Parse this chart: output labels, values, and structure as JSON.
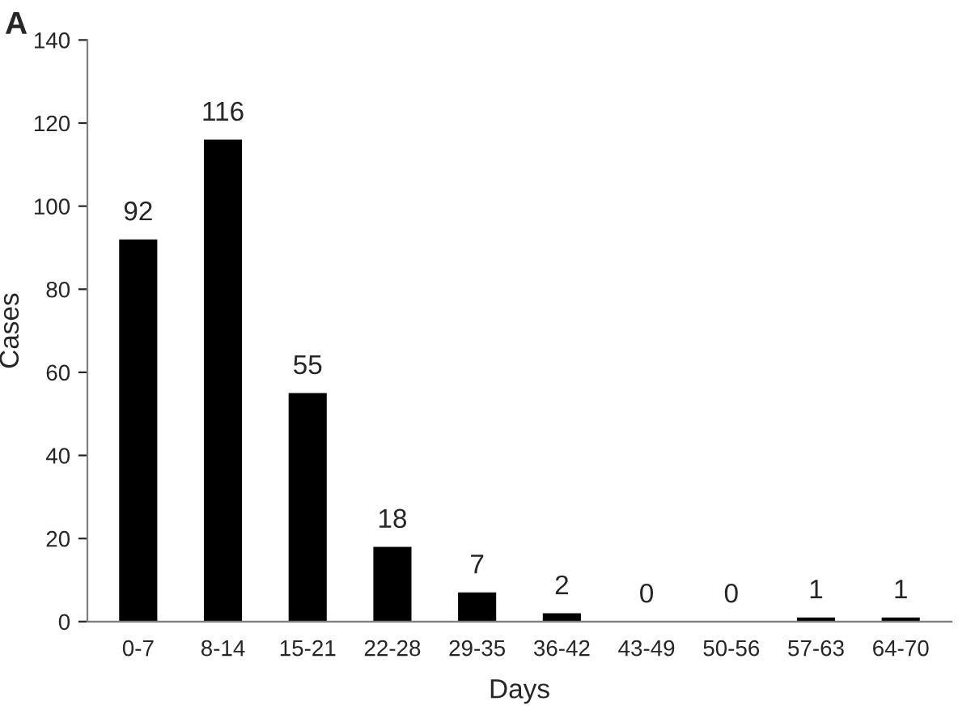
{
  "chart_data": {
    "type": "bar",
    "title": "A",
    "xlabel": "Days",
    "ylabel": "Cases",
    "categories": [
      "0-7",
      "8-14",
      "15-21",
      "22-28",
      "29-35",
      "36-42",
      "43-49",
      "50-56",
      "57-63",
      "64-70"
    ],
    "values": [
      92,
      116,
      55,
      18,
      7,
      2,
      0,
      0,
      1,
      1
    ],
    "color": "#000000",
    "ylim": [
      0,
      140
    ],
    "yticks": [
      0,
      20,
      40,
      60,
      80,
      100,
      120,
      140
    ],
    "data_labels": true,
    "grid": false,
    "legend": false
  }
}
